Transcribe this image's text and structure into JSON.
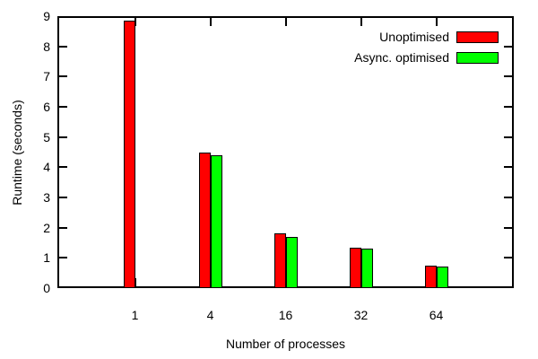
{
  "chart_data": {
    "type": "bar",
    "title": "",
    "xlabel": "Number of processes",
    "ylabel": "Runtime (seconds)",
    "categories": [
      "1",
      "4",
      "16",
      "32",
      "64"
    ],
    "series": [
      {
        "name": "Unoptimised",
        "color": "#ff0000",
        "values": [
          8.85,
          4.5,
          1.8,
          1.35,
          0.75
        ]
      },
      {
        "name": "Async. optimised",
        "color": "#00ff00",
        "values": [
          null,
          4.4,
          1.7,
          1.3,
          0.7
        ]
      }
    ],
    "ylim": [
      0,
      9
    ],
    "yticks": [
      0,
      1,
      2,
      3,
      4,
      5,
      6,
      7,
      8,
      9
    ],
    "grid": false,
    "legend_position": "top-right",
    "frame_color": "#000000",
    "background_color": "#ffffff"
  }
}
